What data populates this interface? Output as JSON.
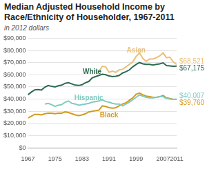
{
  "chart_data": {
    "type": "line",
    "title": "Median Adjusted Household Income by Race/Ethnicity of Householder, 1967-2011",
    "subtitle": "in 2012 dollars",
    "x": [
      1967,
      1968,
      1969,
      1970,
      1971,
      1972,
      1973,
      1974,
      1975,
      1976,
      1977,
      1978,
      1979,
      1980,
      1981,
      1982,
      1983,
      1984,
      1985,
      1986,
      1987,
      1988,
      1989,
      1990,
      1991,
      1992,
      1993,
      1994,
      1995,
      1996,
      1997,
      1998,
      1999,
      2000,
      2001,
      2002,
      2003,
      2004,
      2005,
      2006,
      2007,
      2008,
      2009,
      2010,
      2011
    ],
    "xlim": [
      1967,
      2011
    ],
    "xticks": [
      1967,
      1975,
      1983,
      1991,
      1999,
      2007,
      2011
    ],
    "ylim": [
      0,
      90000
    ],
    "yticks": [
      {
        "value": 0,
        "label": "$0"
      },
      {
        "value": 10000,
        "label": "$10,000"
      },
      {
        "value": 20000,
        "label": "$20,000"
      },
      {
        "value": 30000,
        "label": "$30,000"
      },
      {
        "value": 40000,
        "label": "$40,000"
      },
      {
        "value": 50000,
        "label": "$50,000"
      },
      {
        "value": 60000,
        "label": "$60,000"
      },
      {
        "value": 70000,
        "label": "$70,000"
      },
      {
        "value": 80000,
        "label": "$80,000"
      },
      {
        "value": 90000,
        "label": "$90,000"
      }
    ],
    "grid": true,
    "series": [
      {
        "name": "Asian",
        "color": "#e9c07a",
        "values": [
          null,
          null,
          null,
          null,
          null,
          null,
          null,
          null,
          null,
          null,
          null,
          null,
          null,
          null,
          null,
          null,
          null,
          null,
          null,
          null,
          62000,
          62500,
          67000,
          66500,
          62000,
          63000,
          62000,
          64000,
          64500,
          66500,
          68500,
          70500,
          75000,
          78000,
          73500,
          71000,
          73000,
          73000,
          74000,
          75500,
          78000,
          74000,
          74500,
          70500,
          68521
        ],
        "value_labels": [
          null,
          null,
          null,
          null,
          null,
          null,
          null,
          null,
          null,
          null,
          null,
          null,
          null,
          null,
          null,
          null,
          null,
          null,
          null,
          null,
          null,
          null,
          null,
          null,
          null,
          null,
          null,
          null,
          null,
          null,
          null,
          null,
          null,
          null,
          null,
          null,
          null,
          null,
          null,
          null,
          null,
          null,
          null,
          null,
          "$68,521"
        ]
      },
      {
        "name": "White",
        "color": "#2d6a4f",
        "values": [
          43500,
          45800,
          47600,
          47800,
          47500,
          49800,
          51200,
          50500,
          50000,
          51000,
          51500,
          53000,
          53500,
          52500,
          51500,
          51200,
          51800,
          53500,
          54500,
          57500,
          58500,
          59500,
          60500,
          60000,
          59000,
          58500,
          58800,
          59500,
          61500,
          62500,
          64000,
          66500,
          68500,
          70000,
          69000,
          68500,
          68500,
          68000,
          68500,
          69000,
          69800,
          67500,
          67300,
          67000,
          67175
        ],
        "value_labels": [
          null,
          null,
          null,
          null,
          null,
          null,
          null,
          null,
          null,
          null,
          null,
          null,
          null,
          null,
          null,
          null,
          null,
          null,
          null,
          null,
          null,
          null,
          null,
          null,
          null,
          null,
          null,
          null,
          null,
          null,
          null,
          null,
          null,
          null,
          null,
          null,
          null,
          null,
          null,
          null,
          null,
          null,
          null,
          null,
          "$67,175"
        ]
      },
      {
        "name": "Hispanic",
        "color": "#80cbc1",
        "values": [
          null,
          null,
          null,
          null,
          null,
          36000,
          36500,
          35500,
          34000,
          35000,
          35500,
          37500,
          38500,
          36500,
          36000,
          35000,
          35500,
          36000,
          36500,
          37500,
          38000,
          38500,
          39500,
          38000,
          37500,
          36500,
          36000,
          36000,
          34500,
          36000,
          37500,
          39500,
          41500,
          43500,
          42500,
          41500,
          41000,
          41000,
          41500,
          42000,
          42000,
          40500,
          40000,
          39800,
          40007
        ],
        "value_labels": [
          null,
          null,
          null,
          null,
          null,
          null,
          null,
          null,
          null,
          null,
          null,
          null,
          null,
          null,
          null,
          null,
          null,
          null,
          null,
          null,
          null,
          null,
          null,
          null,
          null,
          null,
          null,
          null,
          null,
          null,
          null,
          null,
          null,
          null,
          null,
          null,
          null,
          null,
          null,
          null,
          null,
          null,
          null,
          null,
          "$40,007"
        ]
      },
      {
        "name": "Black",
        "color": "#d49a1e",
        "values": [
          24500,
          26000,
          27500,
          27500,
          27000,
          28000,
          28500,
          28500,
          28000,
          28500,
          28500,
          29500,
          29000,
          28000,
          27000,
          26500,
          27000,
          28000,
          29500,
          30000,
          30500,
          31000,
          34500,
          34000,
          33000,
          32500,
          33000,
          34500,
          36000,
          37000,
          39000,
          41000,
          44000,
          45000,
          43500,
          42500,
          42000,
          41500,
          41500,
          42000,
          43000,
          41000,
          40500,
          40000,
          39760
        ],
        "value_labels": [
          null,
          null,
          null,
          null,
          null,
          null,
          null,
          null,
          null,
          null,
          null,
          null,
          null,
          null,
          null,
          null,
          null,
          null,
          null,
          null,
          null,
          null,
          null,
          null,
          null,
          null,
          null,
          null,
          null,
          null,
          null,
          null,
          null,
          null,
          null,
          null,
          null,
          null,
          null,
          null,
          null,
          null,
          null,
          null,
          "$39,760"
        ]
      }
    ]
  }
}
